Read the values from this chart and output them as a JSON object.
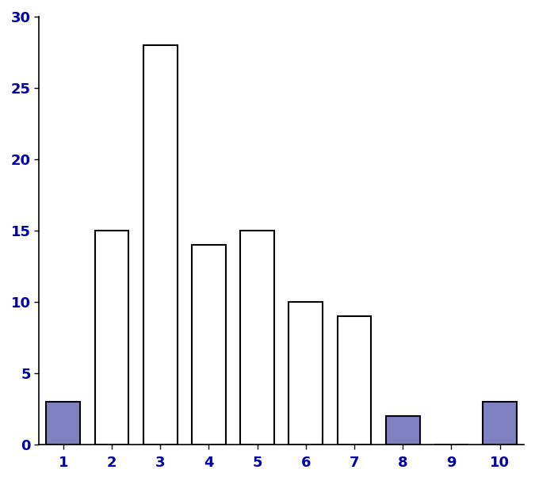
{
  "categories": [
    1,
    2,
    3,
    4,
    5,
    6,
    7,
    8,
    9,
    10
  ],
  "values": [
    3,
    15,
    28,
    14,
    15,
    10,
    9,
    2,
    0,
    3
  ],
  "bar_colors": [
    "#8080c0",
    "#ffffff",
    "#ffffff",
    "#ffffff",
    "#ffffff",
    "#ffffff",
    "#ffffff",
    "#8080c0",
    "#ffffff",
    "#8080c0"
  ],
  "bar_edgecolors": [
    "#000000",
    "#000000",
    "#000000",
    "#000000",
    "#000000",
    "#000000",
    "#000000",
    "#000000",
    "#000000",
    "#000000"
  ],
  "ylim": [
    0,
    30
  ],
  "yticks": [
    0,
    5,
    10,
    15,
    20,
    25,
    30
  ],
  "xticks": [
    1,
    2,
    3,
    4,
    5,
    6,
    7,
    8,
    9,
    10
  ],
  "background_color": "#ffffff",
  "bar_width": 0.7,
  "edge_linewidth": 1.5,
  "tick_fontsize": 13,
  "spine_color": "#000000"
}
